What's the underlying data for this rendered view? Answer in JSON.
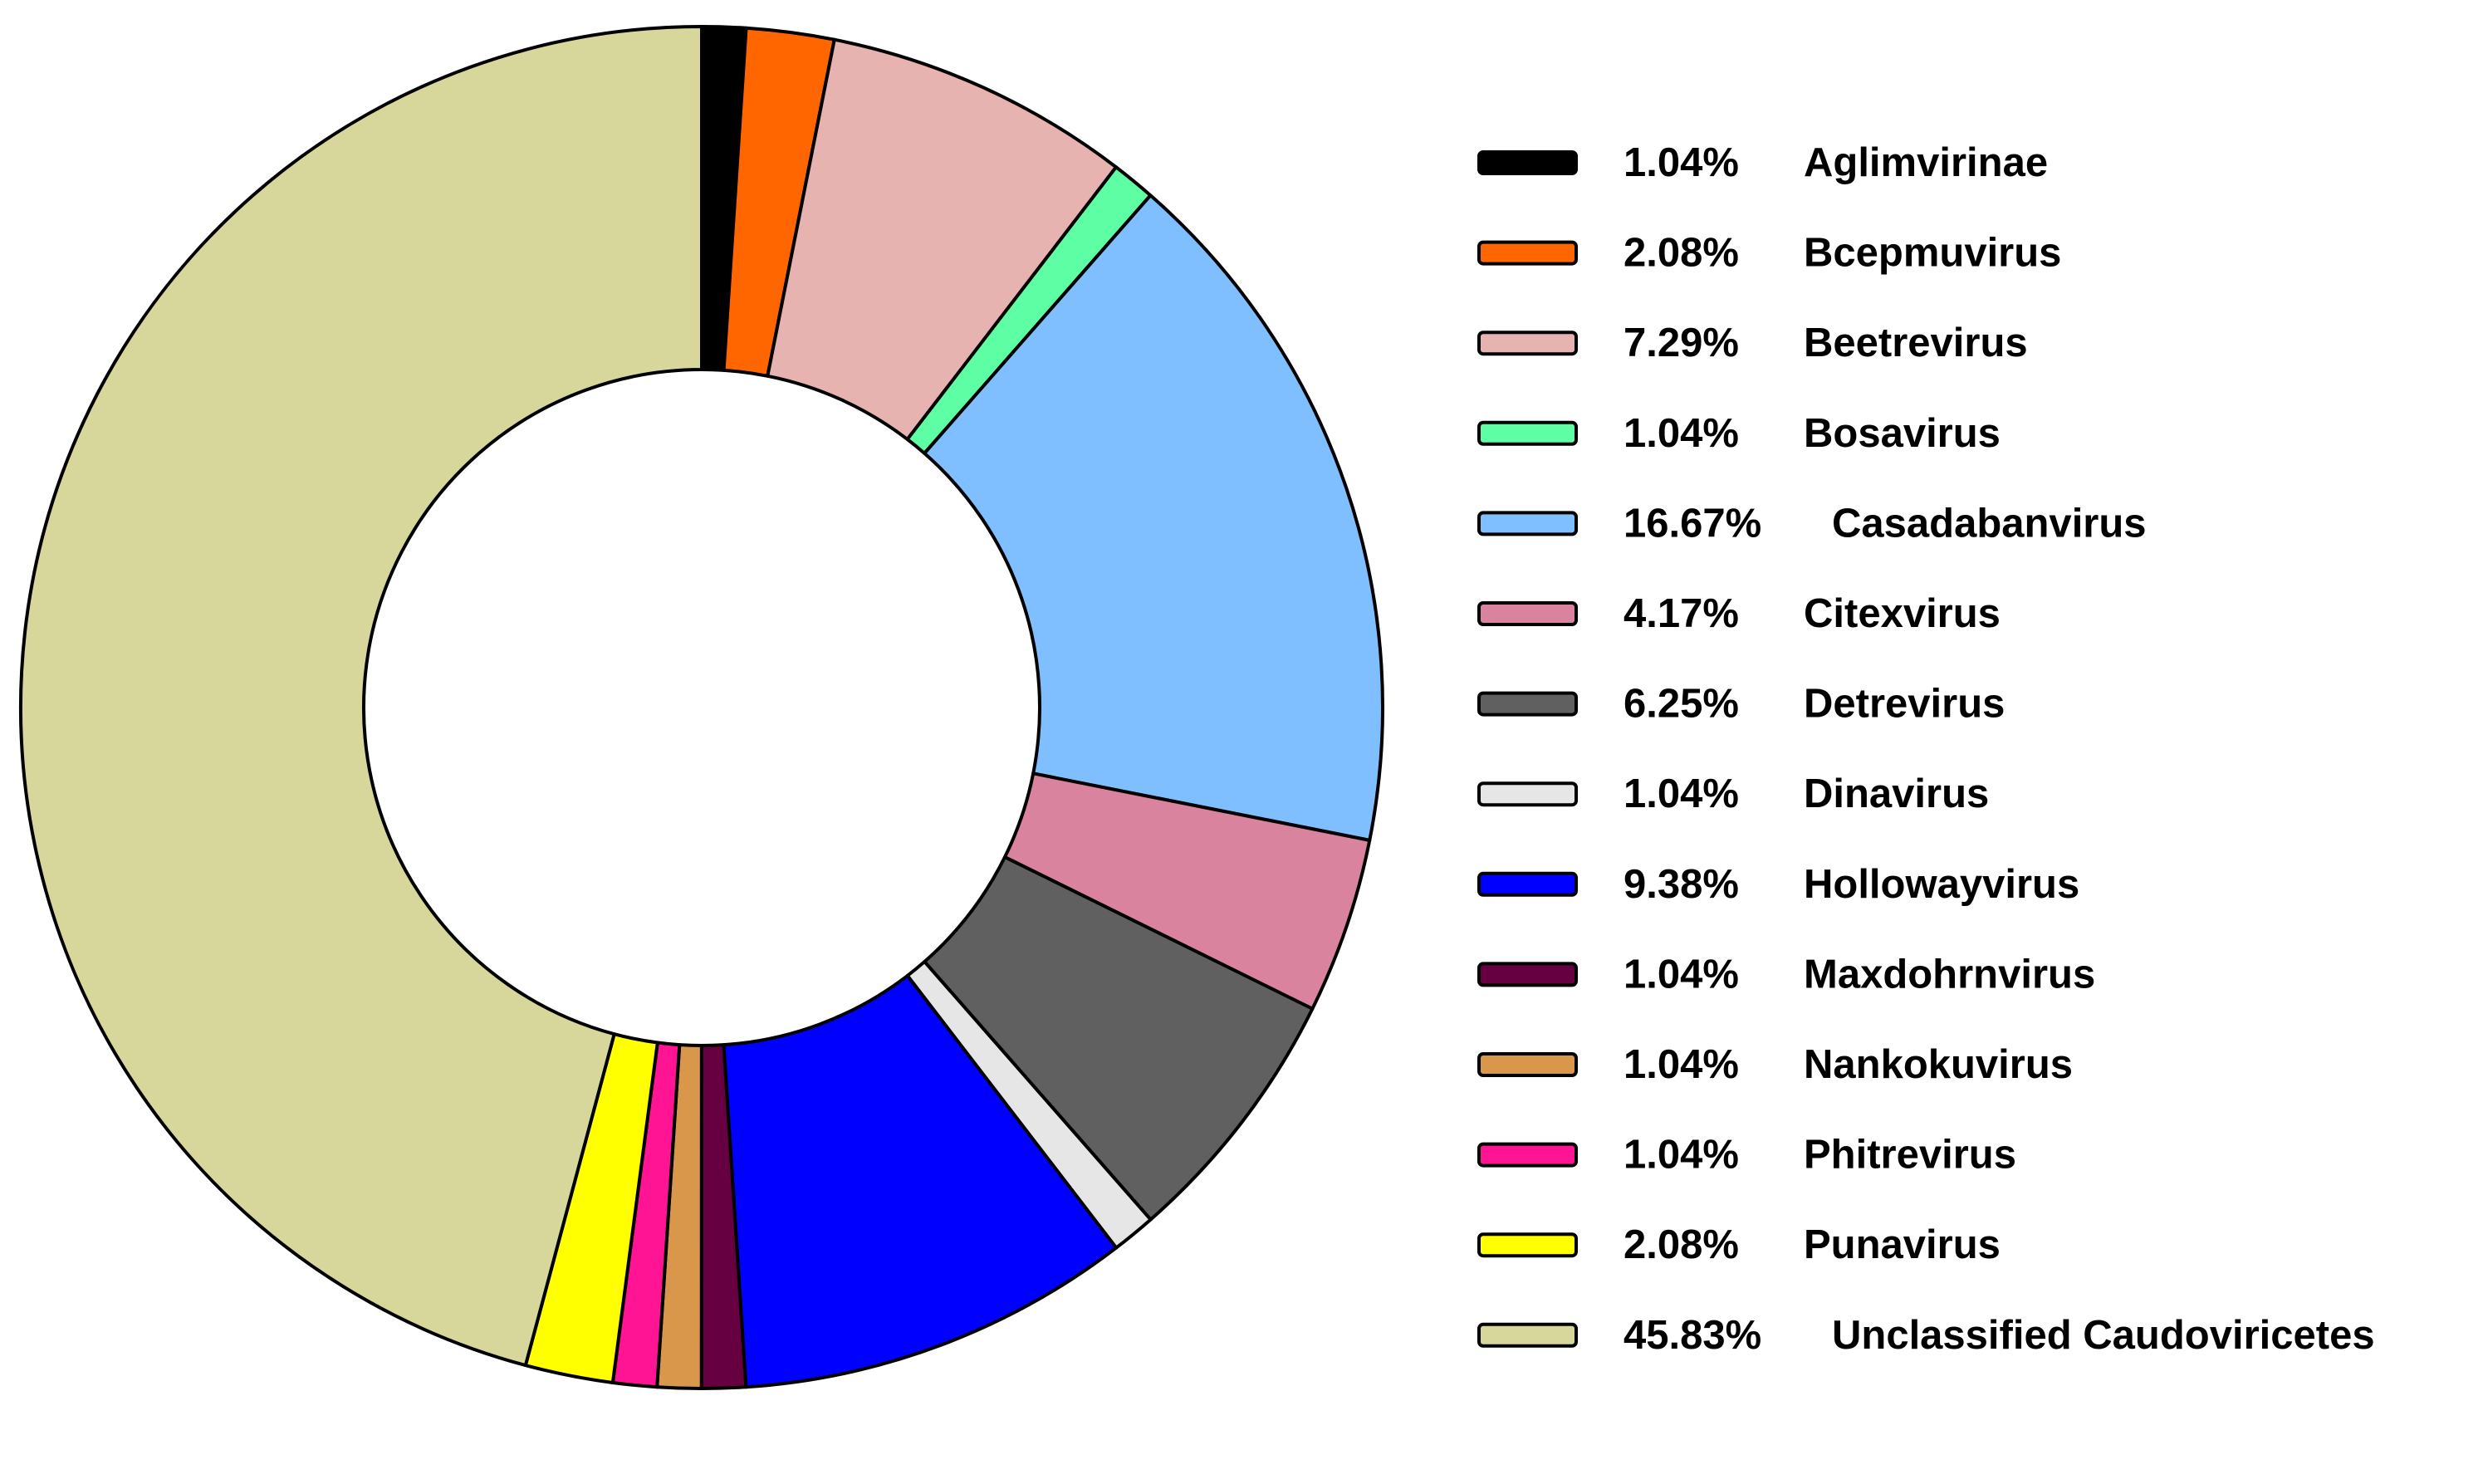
{
  "chart_data": {
    "type": "pie",
    "variant": "donut",
    "title": "",
    "legend_position": "right",
    "slices": [
      {
        "label": "Aglimvirinae",
        "value": 1.04,
        "value_text": "1.04%",
        "color": "#000000"
      },
      {
        "label": "Bcepmuvirus",
        "value": 2.08,
        "value_text": "2.08%",
        "color": "#ff6600"
      },
      {
        "label": "Beetrevirus",
        "value": 7.29,
        "value_text": "7.29%",
        "color": "#e6b3b0"
      },
      {
        "label": "Bosavirus",
        "value": 1.04,
        "value_text": "1.04%",
        "color": "#5effa4"
      },
      {
        "label": "Casadabanvirus",
        "value": 16.67,
        "value_text": "16.67%",
        "color": "#7fbfff"
      },
      {
        "label": "Citexvirus",
        "value": 4.17,
        "value_text": "4.17%",
        "color": "#d9839f"
      },
      {
        "label": "Detrevirus",
        "value": 6.25,
        "value_text": "6.25%",
        "color": "#606060"
      },
      {
        "label": "Dinavirus",
        "value": 1.04,
        "value_text": "1.04%",
        "color": "#e6e6e6"
      },
      {
        "label": "Hollowayvirus",
        "value": 9.38,
        "value_text": "9.38%",
        "color": "#0000ff"
      },
      {
        "label": "Maxdohrnvirus",
        "value": 1.04,
        "value_text": "1.04%",
        "color": "#660040"
      },
      {
        "label": "Nankokuvirus",
        "value": 1.04,
        "value_text": "1.04%",
        "color": "#d9974c"
      },
      {
        "label": "Phitrevirus",
        "value": 1.04,
        "value_text": "1.04%",
        "color": "#ff1493"
      },
      {
        "label": "Punavirus",
        "value": 2.08,
        "value_text": "2.08%",
        "color": "#ffff00"
      },
      {
        "label": "Unclassified Caudoviricetes",
        "value": 45.83,
        "value_text": "45.83%",
        "color": "#d7d79b"
      }
    ]
  }
}
